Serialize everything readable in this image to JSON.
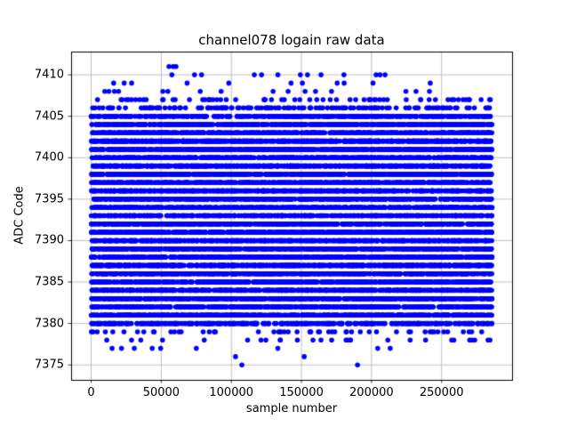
{
  "chart_data": {
    "type": "scatter",
    "title": "channel078 logain raw data",
    "xlabel": "sample number",
    "ylabel": "ADC Code",
    "marker_color": "#0000ff",
    "marker_radius_px": 2.8,
    "grid": true,
    "grid_color": "#b0b0b0",
    "xlim": [
      -14300,
      300300
    ],
    "ylim": [
      7373.2,
      7412.8
    ],
    "x_ticks": [
      0,
      50000,
      100000,
      150000,
      200000,
      250000
    ],
    "y_ticks": [
      7375,
      7380,
      7385,
      7390,
      7395,
      7400,
      7405,
      7410
    ],
    "x_data_range": [
      0,
      286000
    ],
    "y_data_range": [
      7375,
      7411
    ],
    "bands": [
      {
        "adc": 7411,
        "mode": "points",
        "x": [
          55500,
          58500,
          60500
        ]
      },
      {
        "adc": 7410,
        "mode": "sparse",
        "n": 13,
        "x_range": [
          20000,
          235000
        ]
      },
      {
        "adc": 7409,
        "mode": "sparse",
        "n": 11,
        "x_range": [
          15000,
          286000
        ]
      },
      {
        "adc": 7408,
        "mode": "sparse",
        "n": 16,
        "x_range": [
          2000,
          286000
        ]
      },
      {
        "adc": 7407,
        "mode": "sparse",
        "n": 65,
        "x_range": [
          0,
          286000
        ]
      },
      {
        "adc": 7406,
        "mode": "sparse",
        "n": 150,
        "x_range": [
          0,
          286000
        ]
      },
      {
        "adc": 7405,
        "mode": "dense",
        "n": 420,
        "x_range": [
          0,
          286000
        ]
      },
      {
        "adc": 7404,
        "mode": "solid",
        "n": 620,
        "x_range": [
          0,
          286000
        ]
      },
      {
        "adc": 7403,
        "mode": "solid",
        "n": 620,
        "x_range": [
          0,
          286000
        ]
      },
      {
        "adc": 7402,
        "mode": "solid",
        "n": 620,
        "x_range": [
          0,
          286000
        ]
      },
      {
        "adc": 7401,
        "mode": "solid",
        "n": 620,
        "x_range": [
          0,
          286000
        ]
      },
      {
        "adc": 7400,
        "mode": "solid",
        "n": 620,
        "x_range": [
          0,
          286000
        ]
      },
      {
        "adc": 7399,
        "mode": "solid",
        "n": 620,
        "x_range": [
          0,
          286000
        ]
      },
      {
        "adc": 7398,
        "mode": "solid",
        "n": 620,
        "x_range": [
          0,
          286000
        ]
      },
      {
        "adc": 7397,
        "mode": "solid",
        "n": 620,
        "x_range": [
          0,
          286000
        ]
      },
      {
        "adc": 7396,
        "mode": "solid",
        "n": 620,
        "x_range": [
          0,
          286000
        ]
      },
      {
        "adc": 7395,
        "mode": "solid",
        "n": 620,
        "x_range": [
          0,
          286000
        ]
      },
      {
        "adc": 7394,
        "mode": "solid",
        "n": 620,
        "x_range": [
          0,
          286000
        ]
      },
      {
        "adc": 7393,
        "mode": "solid",
        "n": 620,
        "x_range": [
          0,
          286000
        ]
      },
      {
        "adc": 7392,
        "mode": "solid",
        "n": 620,
        "x_range": [
          0,
          286000
        ]
      },
      {
        "adc": 7391,
        "mode": "solid",
        "n": 620,
        "x_range": [
          0,
          286000
        ]
      },
      {
        "adc": 7390,
        "mode": "solid",
        "n": 620,
        "x_range": [
          0,
          286000
        ]
      },
      {
        "adc": 7389,
        "mode": "solid",
        "n": 620,
        "x_range": [
          0,
          286000
        ]
      },
      {
        "adc": 7388,
        "mode": "solid",
        "n": 620,
        "x_range": [
          0,
          286000
        ]
      },
      {
        "adc": 7387,
        "mode": "solid",
        "n": 620,
        "x_range": [
          0,
          286000
        ]
      },
      {
        "adc": 7386,
        "mode": "solid",
        "n": 620,
        "x_range": [
          0,
          286000
        ]
      },
      {
        "adc": 7385,
        "mode": "solid",
        "n": 620,
        "x_range": [
          0,
          286000
        ]
      },
      {
        "adc": 7384,
        "mode": "solid",
        "n": 620,
        "x_range": [
          0,
          286000
        ]
      },
      {
        "adc": 7383,
        "mode": "solid",
        "n": 620,
        "x_range": [
          0,
          286000
        ]
      },
      {
        "adc": 7382,
        "mode": "solid",
        "n": 620,
        "x_range": [
          0,
          286000
        ]
      },
      {
        "adc": 7381,
        "mode": "solid",
        "n": 620,
        "x_range": [
          0,
          286000
        ]
      },
      {
        "adc": 7380,
        "mode": "dense",
        "n": 360,
        "x_range": [
          0,
          286000
        ]
      },
      {
        "adc": 7379,
        "mode": "sparse",
        "n": 55,
        "x_range": [
          0,
          286000
        ]
      },
      {
        "adc": 7378,
        "mode": "sparse",
        "n": 28,
        "x_range": [
          2000,
          286000
        ]
      },
      {
        "adc": 7377,
        "mode": "sparse",
        "n": 9,
        "x_range": [
          0,
          260000
        ]
      },
      {
        "adc": 7376,
        "mode": "points",
        "x": [
          103000,
          152000
        ]
      },
      {
        "adc": 7375,
        "mode": "points",
        "x": [
          107500,
          190000
        ]
      }
    ]
  }
}
